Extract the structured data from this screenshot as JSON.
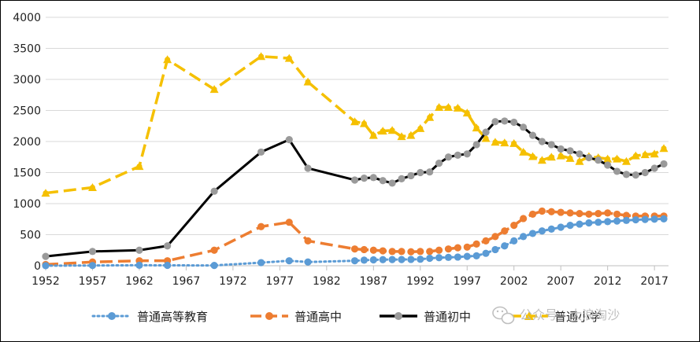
{
  "chart_data": {
    "type": "line",
    "title": "",
    "xlabel": "",
    "ylabel": "",
    "ylim": [
      0,
      4000
    ],
    "yticks": [
      0,
      500,
      1000,
      1500,
      2000,
      2500,
      3000,
      3500,
      4000
    ],
    "xticks": [
      1952,
      1957,
      1962,
      1967,
      1972,
      1977,
      1982,
      1987,
      1992,
      1997,
      2002,
      2007,
      2012,
      2017
    ],
    "xlim": [
      1952,
      2018.5
    ],
    "grid": "horizontal",
    "legend": "bottom",
    "series": [
      {
        "name": "普通高等教育",
        "color": "#5b9bd5",
        "style": "dotted",
        "points": [
          [
            1952,
            1
          ],
          [
            1957,
            4
          ],
          [
            1962,
            8
          ],
          [
            1965,
            6
          ],
          [
            1970,
            5
          ],
          [
            1975,
            50
          ],
          [
            1978,
            80
          ],
          [
            1980,
            60
          ],
          [
            1985,
            80
          ],
          [
            1986,
            90
          ],
          [
            1987,
            95
          ],
          [
            1988,
            98
          ],
          [
            1989,
            100
          ],
          [
            1990,
            100
          ],
          [
            1991,
            102
          ],
          [
            1992,
            105
          ],
          [
            1993,
            120
          ],
          [
            1994,
            130
          ],
          [
            1995,
            135
          ],
          [
            1996,
            140
          ],
          [
            1997,
            150
          ],
          [
            1998,
            160
          ],
          [
            1999,
            200
          ],
          [
            2000,
            260
          ],
          [
            2001,
            320
          ],
          [
            2002,
            400
          ],
          [
            2003,
            470
          ],
          [
            2004,
            520
          ],
          [
            2005,
            560
          ],
          [
            2006,
            590
          ],
          [
            2007,
            620
          ],
          [
            2008,
            650
          ],
          [
            2009,
            670
          ],
          [
            2010,
            690
          ],
          [
            2011,
            700
          ],
          [
            2012,
            710
          ],
          [
            2013,
            720
          ],
          [
            2014,
            730
          ],
          [
            2015,
            740
          ],
          [
            2016,
            745
          ],
          [
            2017,
            750
          ],
          [
            2018,
            755
          ]
        ]
      },
      {
        "name": "普通高中",
        "color": "#ed7d31",
        "style": "dashed",
        "points": [
          [
            1952,
            20
          ],
          [
            1957,
            60
          ],
          [
            1962,
            80
          ],
          [
            1965,
            80
          ],
          [
            1970,
            250
          ],
          [
            1975,
            630
          ],
          [
            1978,
            700
          ],
          [
            1980,
            400
          ],
          [
            1985,
            270
          ],
          [
            1986,
            260
          ],
          [
            1987,
            250
          ],
          [
            1988,
            240
          ],
          [
            1989,
            230
          ],
          [
            1990,
            230
          ],
          [
            1991,
            225
          ],
          [
            1992,
            230
          ],
          [
            1993,
            230
          ],
          [
            1994,
            250
          ],
          [
            1995,
            270
          ],
          [
            1996,
            290
          ],
          [
            1997,
            300
          ],
          [
            1998,
            350
          ],
          [
            1999,
            400
          ],
          [
            2000,
            470
          ],
          [
            2001,
            560
          ],
          [
            2002,
            650
          ],
          [
            2003,
            760
          ],
          [
            2004,
            830
          ],
          [
            2005,
            880
          ],
          [
            2006,
            870
          ],
          [
            2007,
            860
          ],
          [
            2008,
            850
          ],
          [
            2009,
            840
          ],
          [
            2010,
            830
          ],
          [
            2011,
            840
          ],
          [
            2012,
            850
          ],
          [
            2013,
            830
          ],
          [
            2014,
            810
          ],
          [
            2015,
            800
          ],
          [
            2016,
            800
          ],
          [
            2017,
            800
          ],
          [
            2018,
            800
          ]
        ]
      },
      {
        "name": "普通初中",
        "color": "#000000",
        "marker_color": "#9a9a9a",
        "style": "solid",
        "points": [
          [
            1952,
            150
          ],
          [
            1957,
            230
          ],
          [
            1962,
            250
          ],
          [
            1965,
            320
          ],
          [
            1970,
            1200
          ],
          [
            1975,
            1830
          ],
          [
            1978,
            2030
          ],
          [
            1980,
            1570
          ],
          [
            1985,
            1380
          ],
          [
            1986,
            1410
          ],
          [
            1987,
            1420
          ],
          [
            1988,
            1370
          ],
          [
            1989,
            1330
          ],
          [
            1990,
            1400
          ],
          [
            1991,
            1450
          ],
          [
            1992,
            1500
          ],
          [
            1993,
            1510
          ],
          [
            1994,
            1650
          ],
          [
            1995,
            1750
          ],
          [
            1996,
            1780
          ],
          [
            1997,
            1800
          ],
          [
            1998,
            1950
          ],
          [
            1999,
            2150
          ],
          [
            2000,
            2320
          ],
          [
            2001,
            2330
          ],
          [
            2002,
            2310
          ],
          [
            2003,
            2230
          ],
          [
            2004,
            2100
          ],
          [
            2005,
            2000
          ],
          [
            2006,
            1950
          ],
          [
            2007,
            1880
          ],
          [
            2008,
            1850
          ],
          [
            2009,
            1800
          ],
          [
            2010,
            1740
          ],
          [
            2011,
            1700
          ],
          [
            2012,
            1620
          ],
          [
            2013,
            1520
          ],
          [
            2014,
            1470
          ],
          [
            2015,
            1460
          ],
          [
            2016,
            1500
          ],
          [
            2017,
            1570
          ],
          [
            2018,
            1640
          ]
        ]
      },
      {
        "name": "普通小学",
        "color": "#f5c000",
        "marker_color": "#f5c000",
        "style": "dashed",
        "points": [
          [
            1952,
            1170
          ],
          [
            1957,
            1260
          ],
          [
            1962,
            1600
          ],
          [
            1965,
            3320
          ],
          [
            1970,
            2840
          ],
          [
            1975,
            3370
          ],
          [
            1978,
            3340
          ],
          [
            1980,
            2960
          ],
          [
            1985,
            2320
          ],
          [
            1986,
            2290
          ],
          [
            1987,
            2100
          ],
          [
            1988,
            2170
          ],
          [
            1989,
            2180
          ],
          [
            1990,
            2080
          ],
          [
            1991,
            2100
          ],
          [
            1992,
            2210
          ],
          [
            1993,
            2390
          ],
          [
            1994,
            2550
          ],
          [
            1995,
            2550
          ],
          [
            1996,
            2540
          ],
          [
            1997,
            2460
          ],
          [
            1998,
            2220
          ],
          [
            1999,
            2050
          ],
          [
            2000,
            1990
          ],
          [
            2001,
            1980
          ],
          [
            2002,
            1970
          ],
          [
            2003,
            1830
          ],
          [
            2004,
            1760
          ],
          [
            2005,
            1700
          ],
          [
            2006,
            1750
          ],
          [
            2007,
            1770
          ],
          [
            2008,
            1730
          ],
          [
            2009,
            1680
          ],
          [
            2010,
            1760
          ],
          [
            2011,
            1740
          ],
          [
            2012,
            1720
          ],
          [
            2013,
            1720
          ],
          [
            2014,
            1680
          ],
          [
            2015,
            1770
          ],
          [
            2016,
            1790
          ],
          [
            2017,
            1800
          ],
          [
            2018,
            1890
          ]
        ]
      }
    ]
  },
  "watermark": {
    "icon": "wechat-icon",
    "text": "公众号 · 大浪淘沙"
  }
}
